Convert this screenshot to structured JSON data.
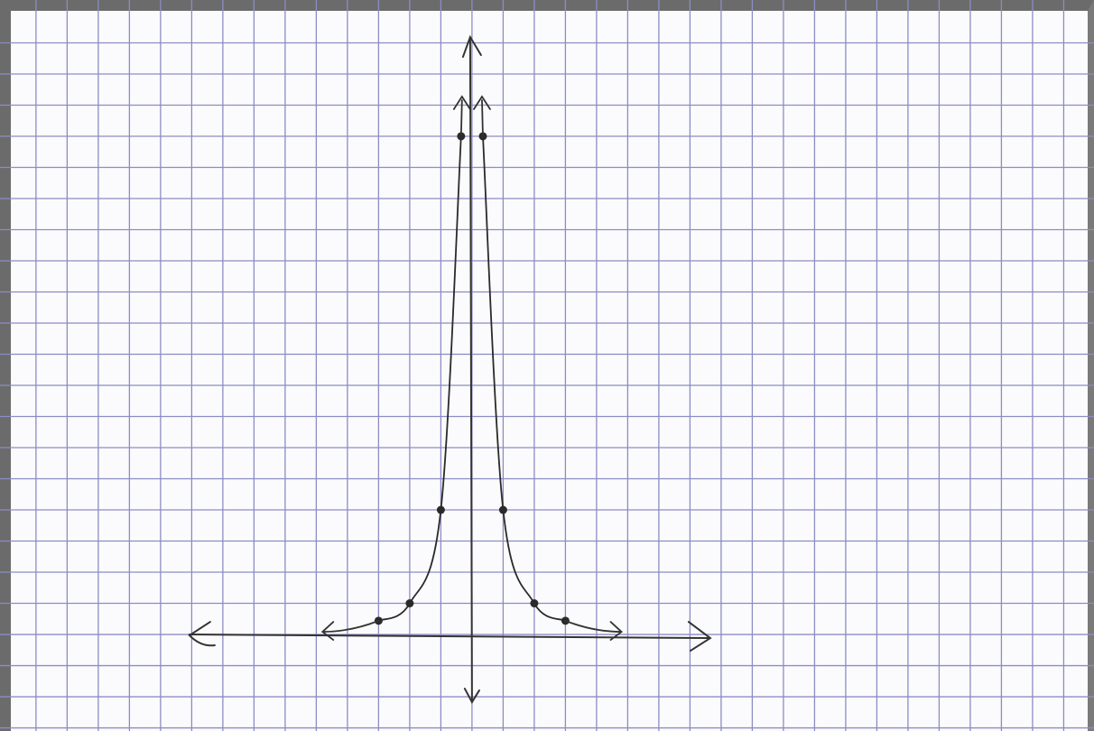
{
  "chart_data": {
    "type": "scatter",
    "series": [
      {
        "color": "#2a2a2a",
        "x": [
          -3,
          -2,
          -1,
          -0.35
        ],
        "values": [
          0.44,
          1,
          4,
          16
        ]
      },
      {
        "color": "#2a2a2a",
        "x": [
          0.35,
          1,
          2,
          3
        ],
        "values": [
          16,
          4,
          1,
          0.44
        ]
      }
    ],
    "xlim": [
      -14.75,
      19.77
    ],
    "ylim": [
      -3.1,
      19.97
    ],
    "grid": true
  }
}
